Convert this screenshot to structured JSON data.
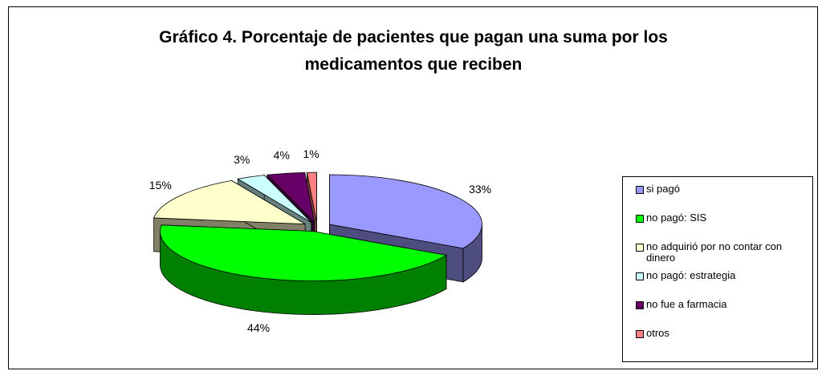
{
  "chart_data": {
    "type": "pie",
    "title": "Gráfico 4. Porcentaje de pacientes que pagan una suma por los medicamentos que reciben",
    "categories": [
      "si pagó",
      "no pagó: SIS",
      "no adquirió por no contar con dinero",
      "no pagó: estrategia",
      "no fue a farmacia",
      "otros"
    ],
    "values": [
      33,
      44,
      15,
      3,
      4,
      1
    ],
    "value_labels": [
      "33%",
      "44%",
      "15%",
      "3%",
      "4%",
      "1%"
    ],
    "colors": [
      "#9999ff",
      "#00ff00",
      "#ffffcc",
      "#ccffff",
      "#660066",
      "#ff8080"
    ],
    "legend": "right"
  }
}
